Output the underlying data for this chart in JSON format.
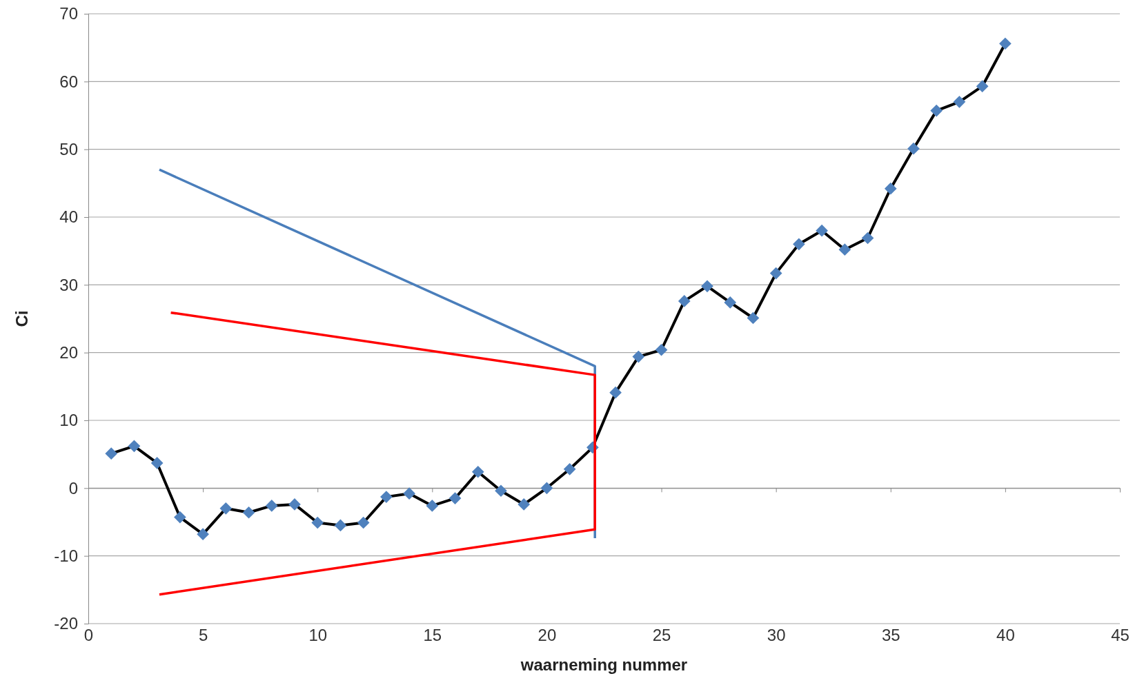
{
  "chart_data": {
    "type": "line",
    "xlabel": "waarneming nummer",
    "ylabel": "Ci",
    "xlim": [
      0,
      45
    ],
    "xticks": [
      0,
      5,
      10,
      15,
      20,
      25,
      30,
      35,
      40,
      45
    ],
    "ylim": [
      -20,
      70
    ],
    "yticks": [
      -20,
      -10,
      0,
      10,
      20,
      30,
      40,
      50,
      60,
      70
    ],
    "grid": "y",
    "marker": "diamond",
    "series": [
      {
        "color": "#4f81bd",
        "x": [
          1,
          2,
          3,
          4,
          5,
          6,
          7,
          8,
          9,
          10,
          11,
          12,
          13,
          14,
          15,
          16,
          17,
          18,
          19,
          20,
          21,
          22,
          23,
          24,
          25,
          26,
          27,
          28,
          29,
          30,
          31,
          32,
          33,
          34,
          35,
          36,
          37,
          38,
          39,
          40
        ],
        "values": [
          5.1,
          6.2,
          3.7,
          -4.3,
          -6.8,
          -3.0,
          -3.6,
          -2.6,
          -2.4,
          -5.1,
          -5.5,
          -5.1,
          -1.3,
          -0.8,
          -2.6,
          -1.5,
          2.4,
          -0.4,
          -2.4,
          0,
          2.8,
          6.0,
          14.1,
          19.4,
          20.4,
          27.6,
          29.8,
          27.4,
          25.1,
          31.7,
          36.0,
          38.0,
          35.2,
          36.9,
          44.2,
          50.1,
          55.7,
          57.0,
          59.3,
          65.6
        ]
      },
      {
        "color": "#4a7ebb",
        "marker": "none",
        "x": [
          3.1,
          22.1,
          22.1
        ],
        "values": [
          47.0,
          18.0,
          -7.4
        ]
      },
      {
        "color": "#ff0000",
        "marker": "none",
        "x": [
          3.6,
          22.1,
          22.1,
          3.1
        ],
        "values": [
          25.9,
          16.7,
          -6.1,
          -15.7
        ]
      }
    ]
  }
}
